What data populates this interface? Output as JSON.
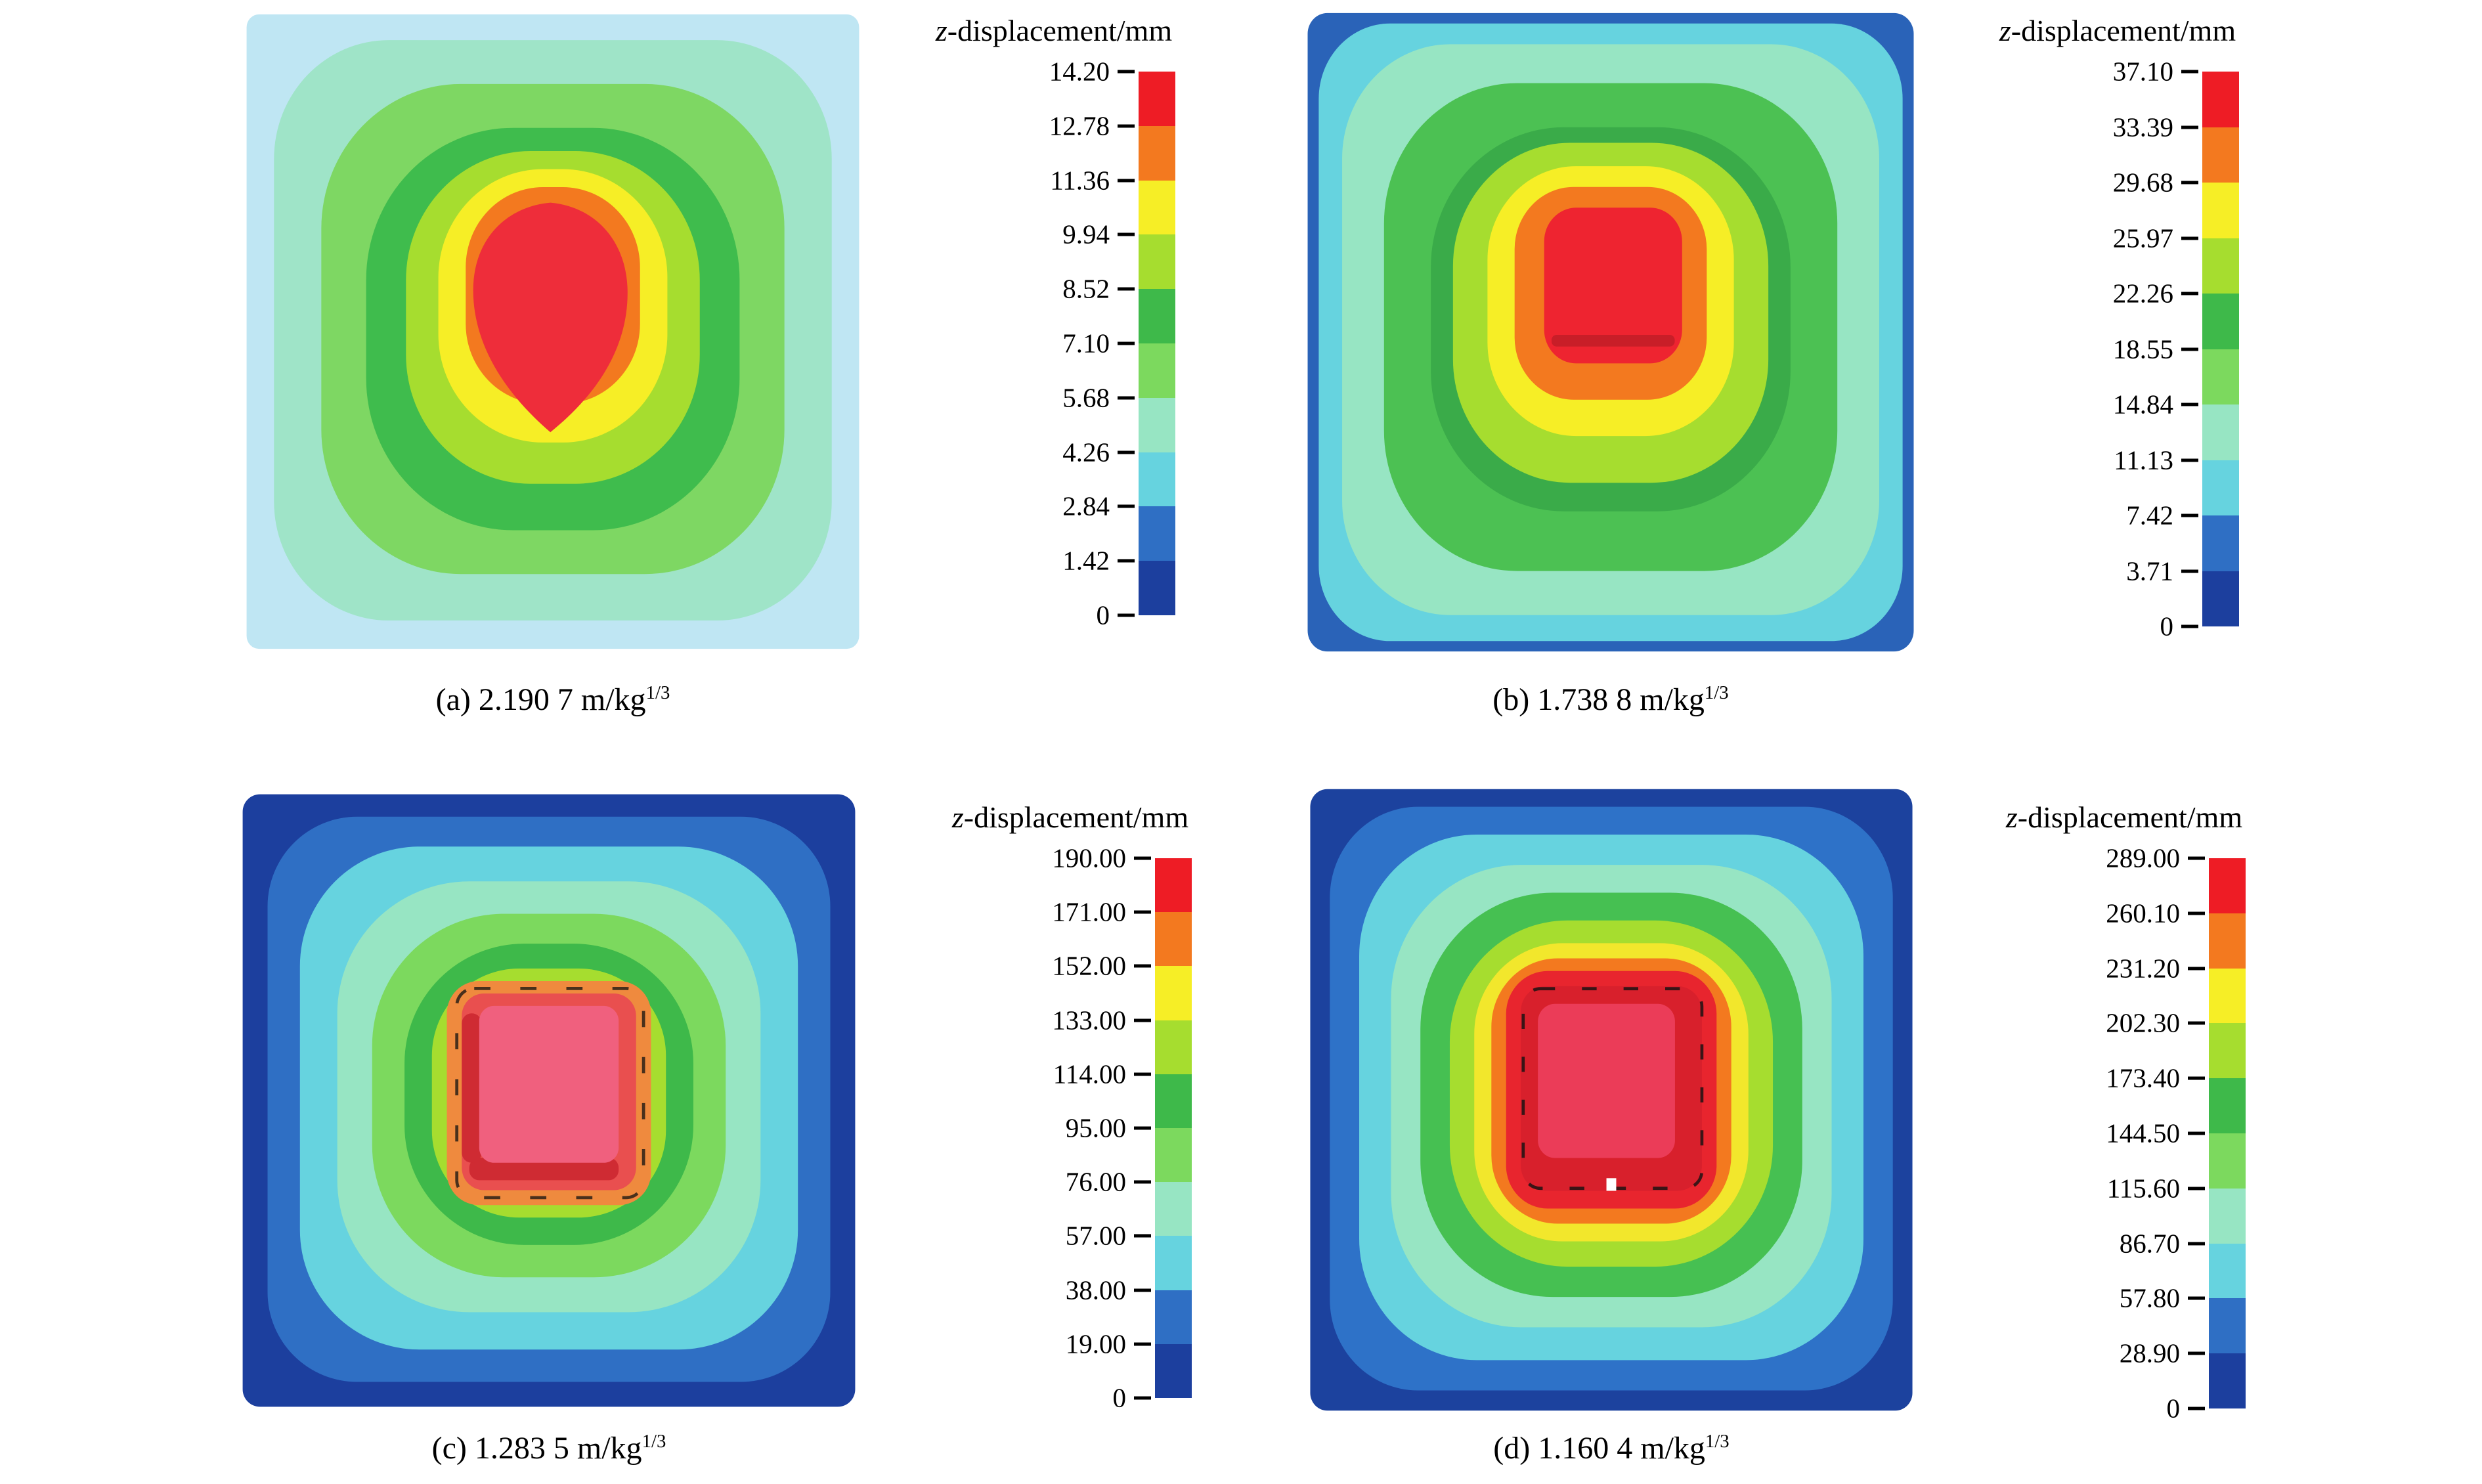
{
  "figure": {
    "description": "Four finite-element contour plots of z-displacement of a square plate at different scaled distances",
    "rows": 2,
    "cols": 2
  },
  "colorbar_title": {
    "var": "z",
    "rest": "-displacement/mm"
  },
  "palette_low_to_high": [
    "#1c3f9e",
    "#2f6fc4",
    "#66d3df",
    "#97e5c3",
    "#7cd95e",
    "#3eb94a",
    "#a6dd2f",
    "#f6ee26",
    "#f3791f",
    "#ee1c25"
  ],
  "panels": [
    {
      "id": "a",
      "caption": "(a) 2.190 7 m/kg",
      "caption_sup": "1/3",
      "ticks": [
        "14.20",
        "12.78",
        "11.36",
        "9.94",
        "8.52",
        "7.10",
        "5.68",
        "4.26",
        "2.84",
        "1.42",
        "0"
      ]
    },
    {
      "id": "b",
      "caption": "(b) 1.738 8 m/kg",
      "caption_sup": "1/3",
      "ticks": [
        "37.10",
        "33.39",
        "29.68",
        "25.97",
        "22.26",
        "18.55",
        "14.84",
        "11.13",
        "7.42",
        "3.71",
        "0"
      ]
    },
    {
      "id": "c",
      "caption": "(c) 1.283 5 m/kg",
      "caption_sup": "1/3",
      "ticks": [
        "190.00",
        "171.00",
        "152.00",
        "133.00",
        "114.00",
        "95.00",
        "76.00",
        "57.00",
        "38.00",
        "19.00",
        "0"
      ]
    },
    {
      "id": "d",
      "caption": "(d) 1.160 4 m/kg",
      "caption_sup": "1/3",
      "ticks": [
        "289.00",
        "260.10",
        "231.20",
        "202.30",
        "173.40",
        "144.50",
        "115.60",
        "86.70",
        "57.80",
        "28.90",
        "0"
      ]
    }
  ],
  "chart_data": [
    {
      "type": "heatmap",
      "panel": "a",
      "title": "(a) 2.190 7 m/kg^(1/3)",
      "colorbar_label": "z-displacement/mm",
      "colorbar_ticks": [
        14.2,
        12.78,
        11.36,
        9.94,
        8.52,
        7.1,
        5.68,
        4.26,
        2.84,
        1.42,
        0
      ],
      "value_range_mm": [
        0,
        14.2
      ],
      "scaled_distance_m_per_kg13": 2.1907,
      "peak_displacement_mm": 14.2,
      "legend_position": "right",
      "pattern": "concentric contours on square plate, small red peak region slightly above center, pale blue/green at edges"
    },
    {
      "type": "heatmap",
      "panel": "b",
      "title": "(b) 1.738 8 m/kg^(1/3)",
      "colorbar_label": "z-displacement/mm",
      "colorbar_ticks": [
        37.1,
        33.39,
        29.68,
        25.97,
        22.26,
        18.55,
        14.84,
        11.13,
        7.42,
        3.71,
        0
      ],
      "value_range_mm": [
        0,
        37.1
      ],
      "scaled_distance_m_per_kg13": 1.7388,
      "peak_displacement_mm": 37.1,
      "legend_position": "right",
      "pattern": "concentric contours, rectangular red peak region above center, blue plate corners"
    },
    {
      "type": "heatmap",
      "panel": "c",
      "title": "(c) 1.283 5 m/kg^(1/3)",
      "colorbar_label": "z-displacement/mm",
      "colorbar_ticks": [
        190.0,
        171.0,
        152.0,
        133.0,
        114.0,
        95.0,
        76.0,
        57.0,
        38.0,
        19.0,
        0
      ],
      "value_range_mm": [
        0,
        190.0
      ],
      "scaled_distance_m_per_kg13": 1.2835,
      "peak_displacement_mm": 190.0,
      "legend_position": "right",
      "pattern": "thick dark-blue border, square orange/red peak zone at center with pink core and dashed mesh artifacts"
    },
    {
      "type": "heatmap",
      "panel": "d",
      "title": "(d) 1.160 4 m/kg^(1/3)",
      "colorbar_label": "z-displacement/mm",
      "colorbar_ticks": [
        289.0,
        260.1,
        231.2,
        202.3,
        173.4,
        144.5,
        115.6,
        86.7,
        57.8,
        28.9,
        0
      ],
      "value_range_mm": [
        0,
        289.0
      ],
      "scaled_distance_m_per_kg13": 1.1604,
      "peak_displacement_mm": 289.0,
      "legend_position": "right",
      "pattern": "thick dark-blue border, large square deep-red peak zone covering most of plate center, dashed mesh artifacts"
    }
  ]
}
